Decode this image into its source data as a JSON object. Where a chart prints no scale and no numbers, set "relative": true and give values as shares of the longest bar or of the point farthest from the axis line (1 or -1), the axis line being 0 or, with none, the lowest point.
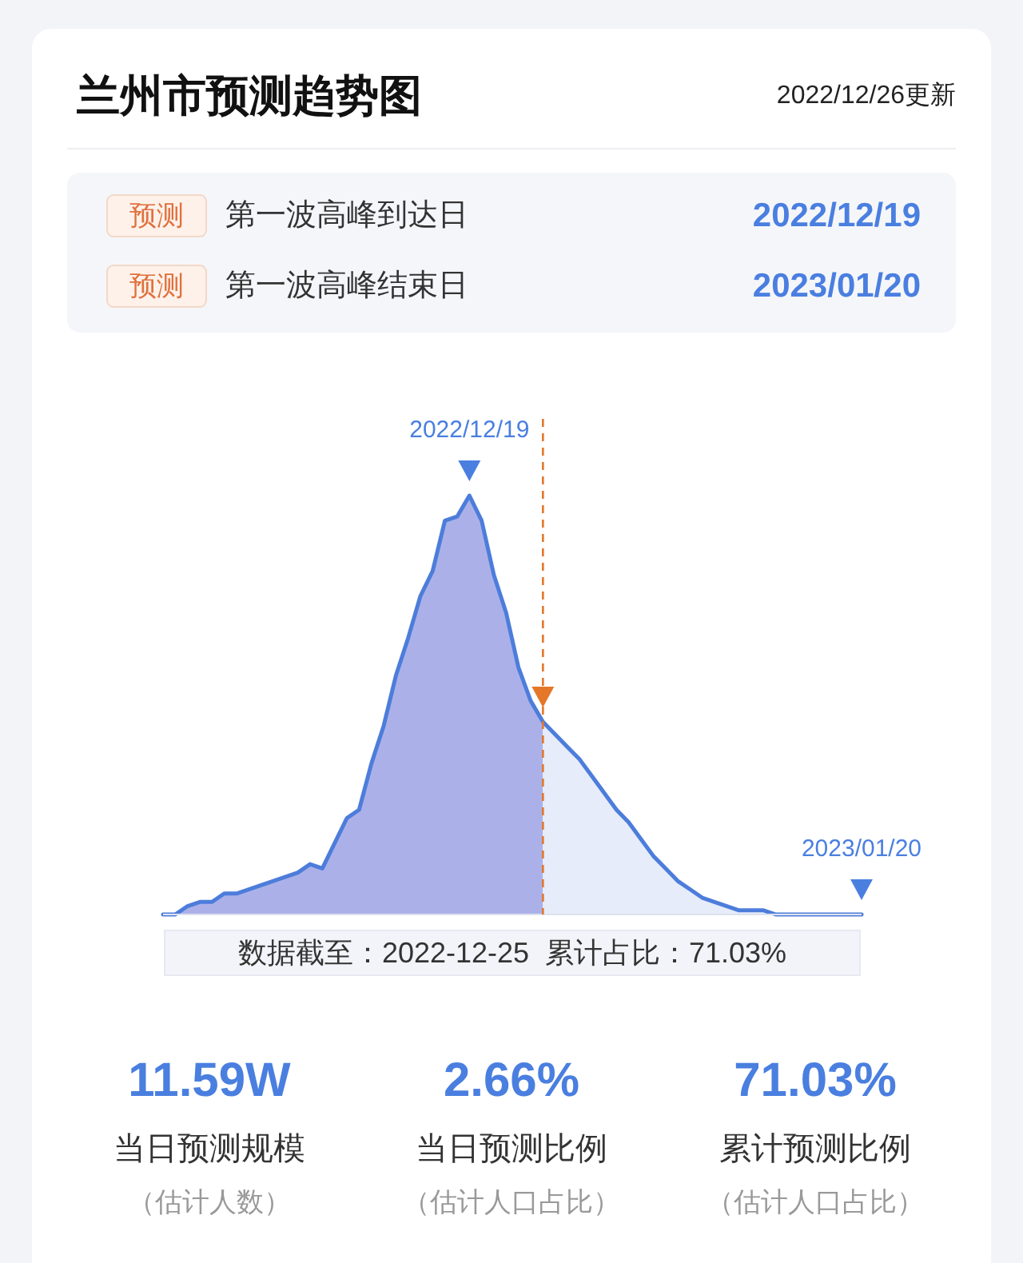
{
  "chart_data": {
    "type": "area",
    "title": "兰州市预测趋势图",
    "subtitle": "2022/12/26更新",
    "relative": true,
    "categories": [
      null,
      null,
      null,
      null,
      null,
      null,
      null,
      null,
      null,
      null,
      null,
      null,
      null,
      null,
      null,
      null,
      null,
      null,
      null,
      null,
      null,
      null,
      null,
      null,
      null,
      null,
      null,
      null,
      null,
      null,
      null,
      null,
      null,
      null,
      null,
      null,
      null,
      null,
      null,
      null,
      null,
      null,
      null,
      null,
      null,
      null,
      null,
      null,
      null,
      null,
      null,
      null,
      null,
      null,
      null,
      null,
      null,
      null
    ],
    "series": [
      {
        "color": "#abb1e8",
        "values": [
          0.0,
          0.0,
          0.02,
          0.03,
          0.03,
          0.05,
          0.05,
          0.06,
          0.07,
          0.08,
          0.09,
          0.1,
          0.12,
          0.11,
          0.17,
          0.23,
          0.25,
          0.36,
          0.45,
          0.57,
          0.66,
          0.76,
          0.82,
          0.94,
          0.95,
          1.0,
          0.94,
          0.81,
          0.72,
          0.59,
          0.51,
          0.46,
          null,
          null,
          null,
          null,
          null,
          null,
          null,
          null,
          null,
          null,
          null,
          null,
          null,
          null,
          null,
          null,
          null,
          null,
          null,
          null,
          null,
          null,
          null,
          null,
          null,
          null
        ]
      },
      {
        "type": "area",
        "color": "#e6ecf9",
        "values": [
          null,
          null,
          null,
          null,
          null,
          null,
          null,
          null,
          null,
          null,
          null,
          null,
          null,
          null,
          null,
          null,
          null,
          null,
          null,
          null,
          null,
          null,
          null,
          null,
          null,
          null,
          null,
          null,
          null,
          null,
          null,
          0.46,
          0.43,
          0.4,
          0.37,
          0.33,
          0.29,
          0.25,
          0.22,
          0.18,
          0.14,
          0.11,
          0.08,
          0.06,
          0.04,
          0.03,
          0.02,
          0.01,
          0.01,
          0.01,
          0.0,
          0.0,
          0.0,
          0.0,
          0.0,
          0.0,
          0.0,
          0.0
        ]
      },
      {
        "type": "line",
        "color": "#4d7ddb",
        "values": [
          0.0,
          0.0,
          0.02,
          0.03,
          0.03,
          0.05,
          0.05,
          0.06,
          0.07,
          0.08,
          0.09,
          0.1,
          0.12,
          0.11,
          0.17,
          0.23,
          0.25,
          0.36,
          0.45,
          0.57,
          0.66,
          0.76,
          0.82,
          0.94,
          0.95,
          1.0,
          0.94,
          0.81,
          0.72,
          0.59,
          0.51,
          0.46,
          0.43,
          0.4,
          0.37,
          0.33,
          0.29,
          0.25,
          0.22,
          0.18,
          0.14,
          0.11,
          0.08,
          0.06,
          0.04,
          0.03,
          0.02,
          0.01,
          0.01,
          0.01,
          0.0,
          0.0,
          0.0,
          0.0,
          0.0,
          0.0,
          0.0,
          0.0
        ]
      }
    ],
    "annotations": [
      "预测",
      "第一波高峰到达日",
      "2022/12/19",
      "预测",
      "第一波高峰结束日",
      "2023/01/20",
      {
        "text": "2022/12/19",
        "y": 1.0
      },
      {
        "text": "2023/01/20",
        "y": 0.0
      },
      "数据截至：2022-12-25  累计占比：71.03%",
      "11.59W",
      "当日预测规模",
      "（估计人数）",
      "2.66%",
      "当日预测比例",
      "（估计人口占比）",
      "71.03%",
      "累计预测比例",
      "（估计人口占比）"
    ]
  }
}
